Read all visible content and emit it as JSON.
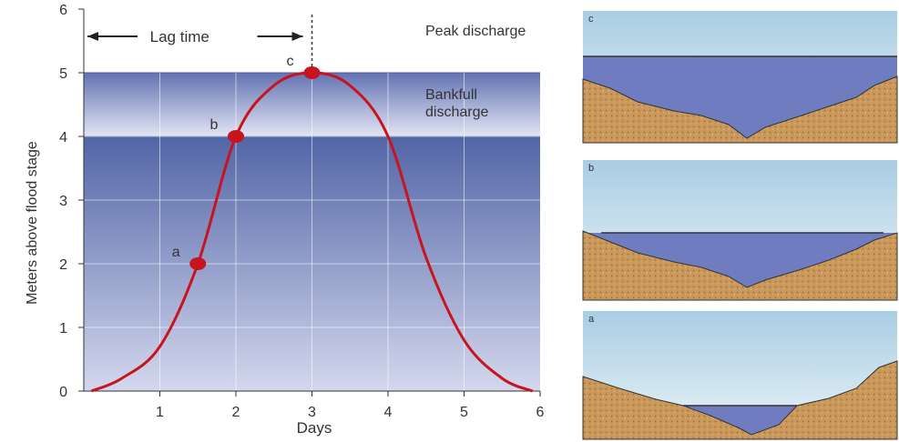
{
  "chart_data": {
    "type": "line",
    "x_label": "Days",
    "y_label": "Meters above flood stage",
    "xlim": [
      0,
      6
    ],
    "ylim": [
      0,
      6
    ],
    "xticks": [
      1,
      2,
      3,
      4,
      5,
      6
    ],
    "yticks": [
      0,
      1,
      2,
      3,
      4,
      5,
      6
    ],
    "grid": true,
    "series": [
      {
        "color": "#c8141e",
        "x": [
          0.1,
          0.5,
          1,
          1.5,
          2,
          2.5,
          3,
          3.5,
          4,
          4.5,
          5,
          5.5,
          5.9
        ],
        "values": [
          0,
          0.2,
          0.7,
          2,
          4,
          4.8,
          5,
          4.8,
          4,
          2.1,
          0.8,
          0.2,
          0
        ]
      }
    ],
    "points": [
      {
        "label": "a",
        "x": 1.5,
        "y": 2
      },
      {
        "label": "b",
        "x": 2,
        "y": 4
      },
      {
        "label": "c",
        "x": 3,
        "y": 5
      }
    ],
    "levels": [
      {
        "label": "Peak discharge",
        "value": 5
      },
      {
        "label": "Bankfull discharge",
        "value": 4
      }
    ],
    "lag_time": {
      "label": "Lag time",
      "from": 0,
      "to": 3
    }
  },
  "cross_sections": [
    "c",
    "b",
    "a"
  ]
}
